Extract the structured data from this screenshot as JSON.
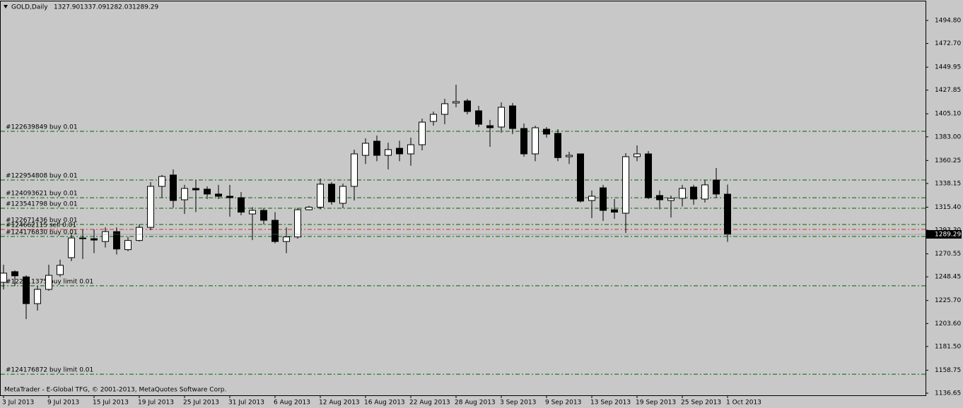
{
  "chart_data": {
    "type": "candlestick",
    "symbol": "GOLD,Daily",
    "header_values": [
      "1327.90",
      "1337.09",
      "1282.03",
      "1289.29"
    ],
    "footer": "MetaTrader - E-Global TFG, © 2001-2013, MetaQuotes Software Corp.",
    "categories": [
      "3 Jul 2013",
      null,
      null,
      null,
      "9 Jul 2013",
      null,
      null,
      null,
      "15 Jul 2013",
      null,
      null,
      null,
      "19 Jul 2013",
      null,
      null,
      null,
      "25 Jul 2013",
      null,
      null,
      null,
      "31 Jul 2013",
      null,
      null,
      null,
      "6 Aug 2013",
      null,
      null,
      null,
      "12 Aug 2013",
      null,
      null,
      null,
      "16 Aug 2013",
      null,
      null,
      null,
      "22 Aug 2013",
      null,
      null,
      null,
      "28 Aug 2013",
      null,
      null,
      null,
      "3 Sep 2013",
      null,
      null,
      null,
      "9 Sep 2013",
      null,
      null,
      null,
      "13 Sep 2013",
      null,
      null,
      null,
      "19 Sep 2013",
      null,
      null,
      null,
      "25 Sep 2013",
      null,
      null,
      null,
      "1 Oct 2013"
    ],
    "open": [
      1243.2,
      1253.4,
      1248.4,
      1222.7,
      1236.4,
      1250.6,
      1266.9,
      1285.8,
      1285.1,
      1282.4,
      1291.9,
      1274.6,
      1283.4,
      1296.0,
      1335.4,
      1346.3,
      1322.5,
      1333.4,
      1332.7,
      1328.0,
      1325.9,
      1324.5,
      1308.9,
      1312.3,
      1302.8,
      1282.4,
      1286.8,
      1312.9,
      1315.4,
      1337.5,
      1319.1,
      1335.4,
      1365.2,
      1378.8,
      1365.2,
      1372.0,
      1366.6,
      1375.4,
      1397.8,
      1404.6,
      1415.5,
      1417.5,
      1408.0,
      1393.7,
      1392.4,
      1412.7,
      1391.0,
      1366.6,
      1390.3,
      1386.3,
      1363.9,
      1366.6,
      1321.8,
      1334.0,
      1312.9,
      1309.6,
      1363.9,
      1366.6,
      1326.6,
      1321.8,
      1323.9,
      1334.7,
      1323.2,
      1341.5,
      1327.9
    ],
    "high": [
      1260.1,
      1254.7,
      1249.9,
      1239.8,
      1260.1,
      1264.9,
      1290.6,
      1294.0,
      1294.0,
      1296.0,
      1296.0,
      1286.8,
      1298.8,
      1339.5,
      1346.3,
      1351.7,
      1336.8,
      1341.5,
      1335.4,
      1336.8,
      1336.8,
      1329.9,
      1315.4,
      1314.7,
      1310.6,
      1296.0,
      1314.7,
      1316.7,
      1342.9,
      1339.5,
      1338.1,
      1370.7,
      1381.6,
      1384.2,
      1377.4,
      1379.3,
      1382.2,
      1400.5,
      1407.3,
      1419.5,
      1433.1,
      1419.5,
      1412.7,
      1399.2,
      1416.1,
      1415.5,
      1395.8,
      1393.7,
      1392.4,
      1390.3,
      1368.6,
      1366.6,
      1331.4,
      1336.8,
      1323.2,
      1367.3,
      1374.7,
      1369.3,
      1331.4,
      1326.6,
      1336.8,
      1336.8,
      1341.5,
      1353.0,
      1337.09
    ],
    "low": [
      1236.4,
      1239.8,
      1207.8,
      1216.0,
      1235.0,
      1248.4,
      1263.5,
      1265.6,
      1271.2,
      1276.6,
      1269.9,
      1273.2,
      1282.4,
      1293.3,
      1324.5,
      1315.0,
      1308.9,
      1310.6,
      1323.2,
      1323.2,
      1306.2,
      1307.6,
      1283.8,
      1298.8,
      1280.5,
      1271.2,
      1285.1,
      1312.3,
      1313.3,
      1317.8,
      1314.4,
      1321.8,
      1356.9,
      1359.6,
      1351.7,
      1359.6,
      1355.2,
      1370.0,
      1393.7,
      1395.1,
      1411.4,
      1404.6,
      1392.4,
      1373.4,
      1386.9,
      1385.6,
      1363.9,
      1359.6,
      1382.2,
      1359.6,
      1356.9,
      1319.8,
      1304.9,
      1302.2,
      1304.2,
      1290.6,
      1359.6,
      1323.2,
      1313.3,
      1305.5,
      1316.1,
      1317.8,
      1319.8,
      1324.5,
      1282.03
    ],
    "close": [
      1252.0,
      1249.4,
      1222.7,
      1236.4,
      1249.9,
      1259.5,
      1285.8,
      1285.1,
      1283.8,
      1291.9,
      1275.2,
      1283.4,
      1296.0,
      1335.4,
      1344.9,
      1321.8,
      1333.4,
      1332.0,
      1328.0,
      1325.9,
      1324.5,
      1310.6,
      1312.3,
      1302.8,
      1282.4,
      1286.8,
      1312.9,
      1315.4,
      1337.5,
      1320.5,
      1335.4,
      1366.6,
      1376.8,
      1365.2,
      1370.7,
      1366.6,
      1375.4,
      1397.1,
      1404.6,
      1414.8,
      1416.8,
      1407.3,
      1395.1,
      1391.7,
      1411.4,
      1391.0,
      1366.6,
      1391.7,
      1385.6,
      1363.0,
      1365.2,
      1321.2,
      1325.9,
      1312.3,
      1310.6,
      1363.9,
      1366.6,
      1324.5,
      1322.5,
      1323.9,
      1333.4,
      1323.2,
      1336.8,
      1328.0,
      1289.29
    ],
    "up_color": "#ffffff",
    "down_color": "#000000",
    "wick_color": "#000000",
    "orders": [
      {
        "label": "#122639849 buy 0.01",
        "value": 1388.3,
        "color": "#006400"
      },
      {
        "label": "#122954808 buy 0.01",
        "value": 1341.5,
        "color": "#006400"
      },
      {
        "label": "#124093621 buy 0.01",
        "value": 1324.5,
        "color": "#006400"
      },
      {
        "label": "#123541798 buy 0.01",
        "value": 1314.4,
        "color": "#006400"
      },
      {
        "label": "#122671436 buy 0.01",
        "value": 1298.8,
        "color": "#006400"
      },
      {
        "label": "#124662115 sell 0.01",
        "value": 1294.0,
        "color": "#e03020"
      },
      {
        "label": "#124176830 buy 0.01",
        "value": 1287.2,
        "color": "#006400"
      },
      {
        "label": "#122911375 buy limit 0.01",
        "value": 1239.8,
        "color": "#006400"
      },
      {
        "label": "#124176872 buy limit 0.01",
        "value": 1154.9,
        "color": "#006400"
      }
    ],
    "last_price": {
      "value": 1289.29,
      "label": "1289.29"
    },
    "ylim": [
      1134.62,
      1513.11
    ],
    "yticks": [
      {
        "value": 1494.8,
        "label": "1494.80"
      },
      {
        "value": 1472.7,
        "label": "1472.70"
      },
      {
        "value": 1449.95,
        "label": "1449.95"
      },
      {
        "value": 1427.85,
        "label": "1427.85"
      },
      {
        "value": 1405.1,
        "label": "1405.10"
      },
      {
        "value": 1383.0,
        "label": "1383.00"
      },
      {
        "value": 1360.25,
        "label": "1360.25"
      },
      {
        "value": 1338.15,
        "label": "1338.15"
      },
      {
        "value": 1315.4,
        "label": "1315.40"
      },
      {
        "value": 1293.3,
        "label": "1293.30"
      },
      {
        "value": 1270.55,
        "label": "1270.55"
      },
      {
        "value": 1248.45,
        "label": "1248.45"
      },
      {
        "value": 1225.7,
        "label": "1225.70"
      },
      {
        "value": 1203.6,
        "label": "1203.60"
      },
      {
        "value": 1181.5,
        "label": "1181.50"
      },
      {
        "value": 1158.75,
        "label": "1158.75"
      },
      {
        "value": 1136.65,
        "label": "1136.65"
      }
    ]
  }
}
